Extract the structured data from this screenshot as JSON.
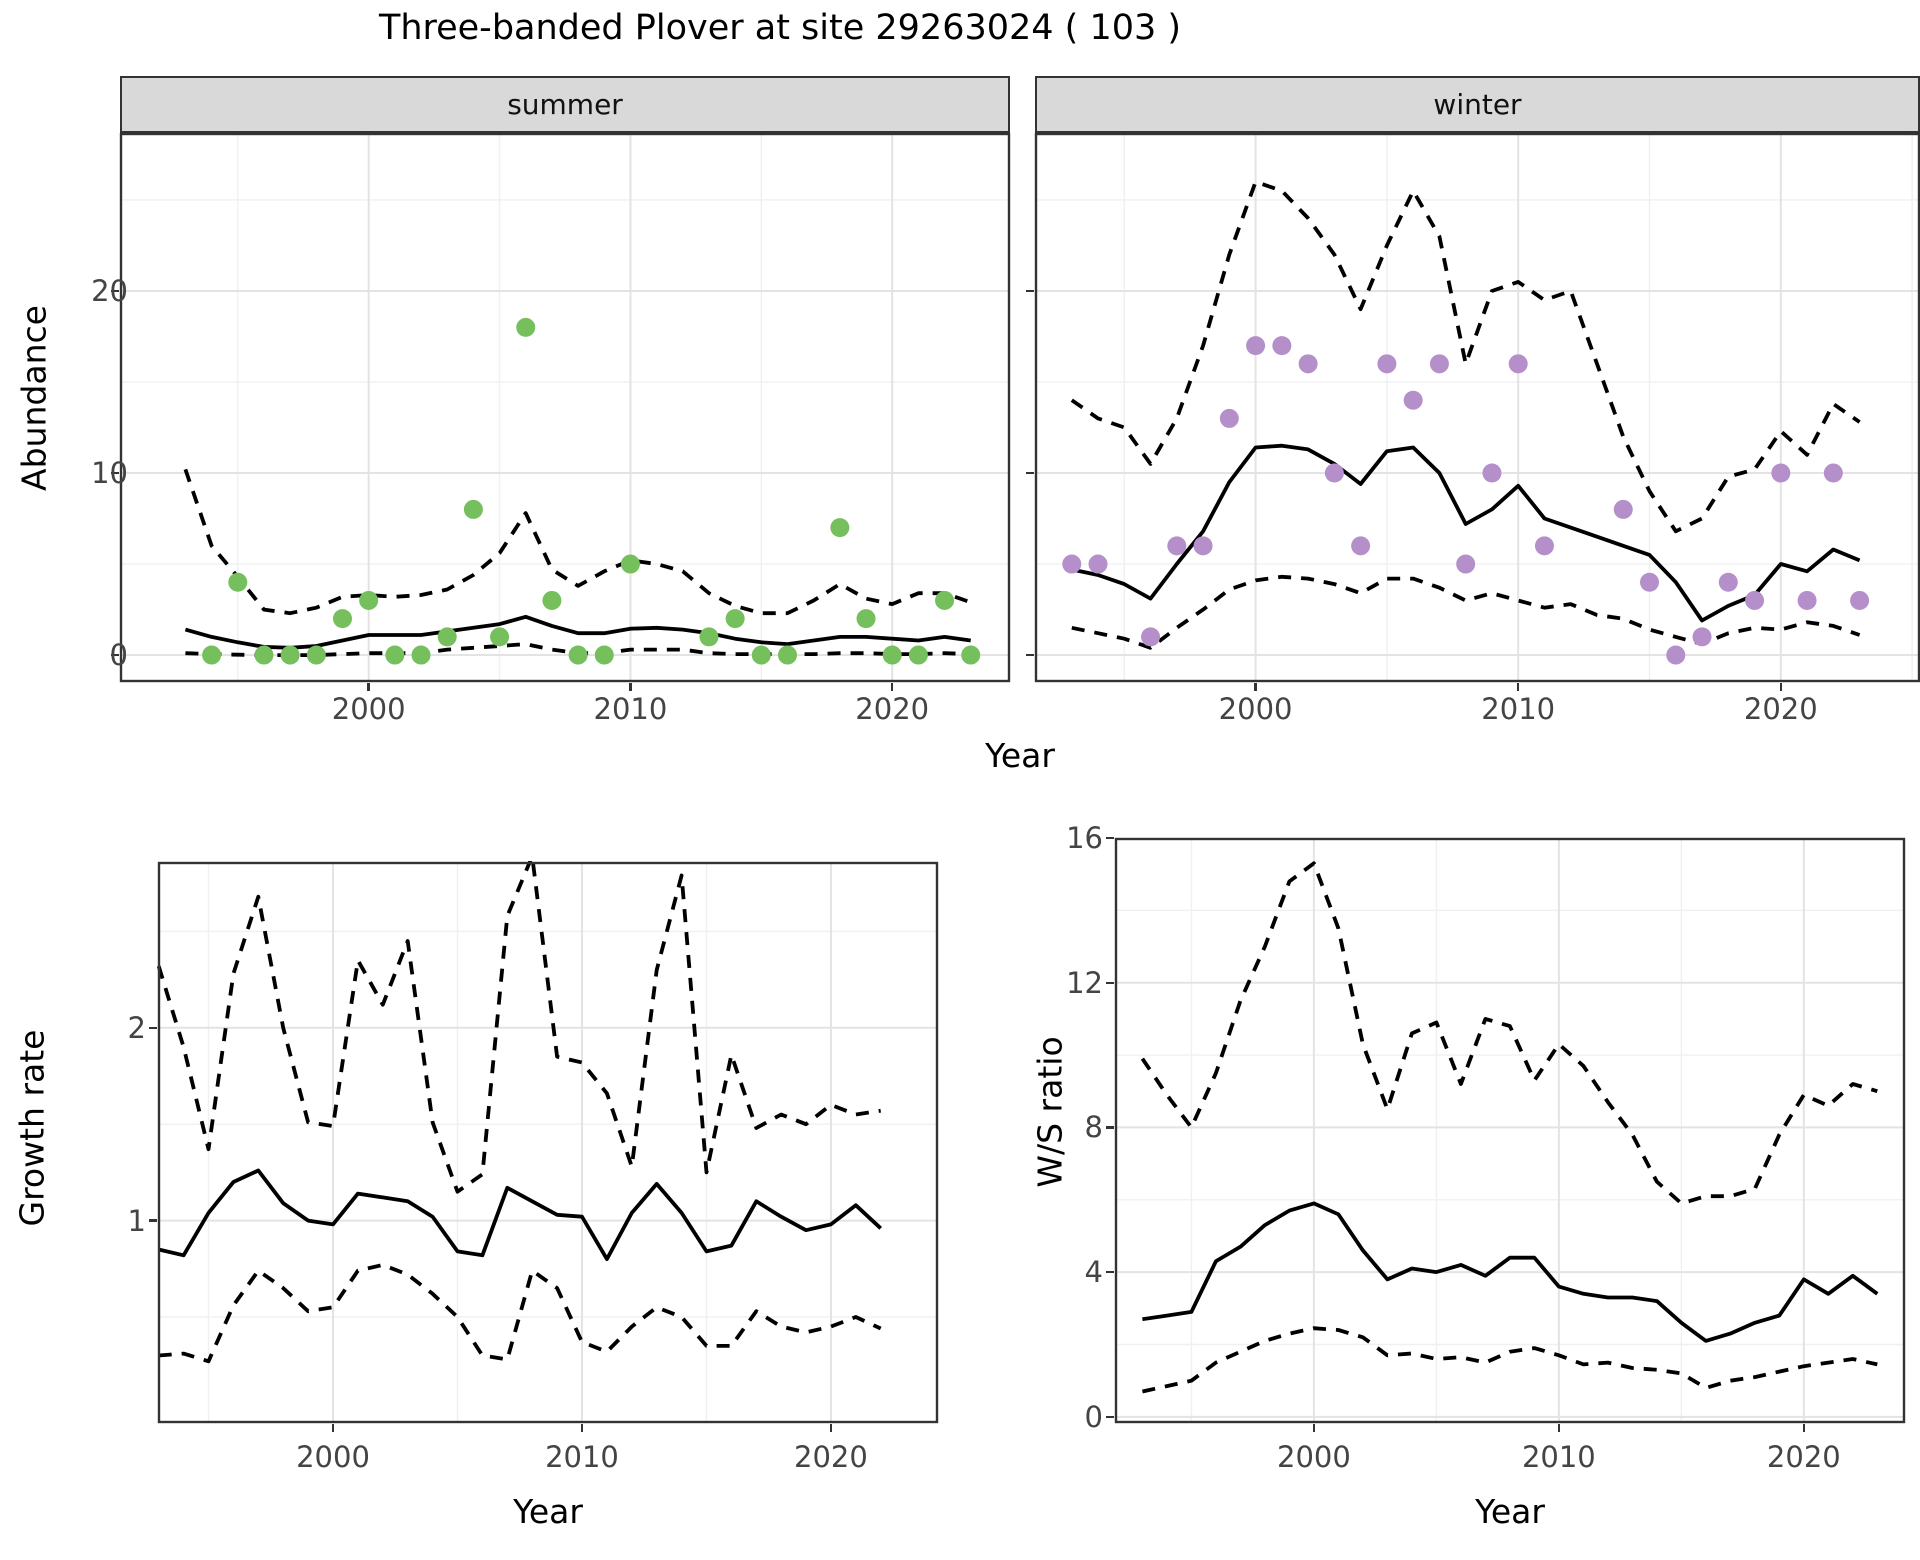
{
  "title": "Three-banded Plover at site 29263024 ( 103 )",
  "labels": {
    "y_abundance": "Abundance",
    "y_growth": "Growth rate",
    "y_ws": "W/S ratio",
    "x_year": "Year"
  },
  "facets": [
    {
      "label": "summer"
    },
    {
      "label": "winter"
    }
  ],
  "colors": {
    "summer_point": "#75bf5c",
    "winter_point": "#b58fc9",
    "line": "#000000",
    "panel_border": "#333333",
    "strip_bg": "#d9d9d9",
    "grid_major": "#e3e3e3",
    "grid_minor": "#f0f0f0",
    "tick_text": "#444444"
  },
  "chart_data": [
    {
      "type": "line",
      "title": "summer",
      "xlabel": "Year",
      "ylabel": "Abundance",
      "legend": "none",
      "grid": "on",
      "xlim": [
        1990.5,
        2024.5
      ],
      "ylim": [
        -1.48,
        28.68
      ],
      "xticks": [
        2000,
        2010,
        2020
      ],
      "yticks": [
        0,
        10,
        20
      ],
      "x": [
        1993,
        1994,
        1995,
        1996,
        1997,
        1998,
        1999,
        2000,
        2001,
        2002,
        2003,
        2004,
        2005,
        2006,
        2007,
        2008,
        2009,
        2010,
        2011,
        2012,
        2013,
        2014,
        2015,
        2016,
        2017,
        2018,
        2019,
        2020,
        2021,
        2022,
        2023
      ],
      "series": [
        {
          "name": "observed_count",
          "style": "points",
          "color": "#75bf5c",
          "values": [
            null,
            0,
            4,
            0,
            0,
            0,
            2,
            3,
            0,
            0,
            1,
            8,
            1,
            18,
            3,
            0,
            0,
            5,
            null,
            null,
            1,
            2,
            0,
            0,
            null,
            7,
            2,
            0,
            0,
            3,
            0
          ]
        },
        {
          "name": "model_median",
          "style": "solid",
          "color": "#000000",
          "values": [
            1.4,
            1.0,
            0.7,
            0.45,
            0.4,
            0.5,
            0.8,
            1.1,
            1.1,
            1.1,
            1.3,
            1.5,
            1.7,
            2.1,
            1.6,
            1.2,
            1.2,
            1.45,
            1.5,
            1.4,
            1.2,
            0.9,
            0.7,
            0.6,
            0.8,
            1.0,
            1.0,
            0.9,
            0.8,
            1.0,
            0.8
          ]
        },
        {
          "name": "ci_upper_95",
          "style": "dashed",
          "color": "#000000",
          "values": [
            10.2,
            6.0,
            4.3,
            2.5,
            2.3,
            2.6,
            3.2,
            3.3,
            3.2,
            3.3,
            3.6,
            4.4,
            5.6,
            7.8,
            4.7,
            3.8,
            4.6,
            5.2,
            5.0,
            4.6,
            3.4,
            2.7,
            2.3,
            2.3,
            3.0,
            3.9,
            3.1,
            2.8,
            3.4,
            3.4,
            2.9
          ]
        },
        {
          "name": "ci_lower_95",
          "style": "dashed",
          "color": "#000000",
          "values": [
            0.1,
            0.05,
            0.02,
            0,
            0,
            0,
            0.05,
            0.1,
            0.1,
            0.1,
            0.3,
            0.4,
            0.5,
            0.6,
            0.3,
            0.1,
            0.1,
            0.3,
            0.3,
            0.3,
            0.1,
            0.05,
            0.05,
            0.05,
            0.05,
            0.1,
            0.1,
            0.05,
            0.05,
            0.1,
            0.05
          ]
        }
      ]
    },
    {
      "type": "line",
      "title": "winter",
      "xlabel": "Year",
      "ylabel": "Abundance",
      "legend": "none",
      "grid": "on",
      "xlim": [
        1991.6,
        2025.3
      ],
      "ylim": [
        -1.48,
        28.68
      ],
      "xticks": [
        2000,
        2010,
        2020
      ],
      "yticks": [
        0,
        10,
        20
      ],
      "x": [
        1993,
        1994,
        1995,
        1996,
        1997,
        1998,
        1999,
        2000,
        2001,
        2002,
        2003,
        2004,
        2005,
        2006,
        2007,
        2008,
        2009,
        2010,
        2011,
        2012,
        2013,
        2014,
        2015,
        2016,
        2017,
        2018,
        2019,
        2020,
        2021,
        2022,
        2023
      ],
      "series": [
        {
          "name": "observed_count",
          "style": "points",
          "color": "#b58fc9",
          "values": [
            5,
            5,
            null,
            1,
            6,
            6,
            13,
            17,
            17,
            16,
            10,
            6,
            16,
            14,
            16,
            5,
            10,
            16,
            6,
            null,
            null,
            8,
            4,
            0,
            1,
            4,
            3,
            10,
            3,
            10,
            3
          ]
        },
        {
          "name": "model_median",
          "style": "solid",
          "color": "#000000",
          "values": [
            4.7,
            4.4,
            3.9,
            3.1,
            5.0,
            6.8,
            9.5,
            11.4,
            11.5,
            11.3,
            10.5,
            9.4,
            11.2,
            11.4,
            10.0,
            7.2,
            8.0,
            9.3,
            7.5,
            7.0,
            6.5,
            6.0,
            5.5,
            4.0,
            1.9,
            2.7,
            3.3,
            5.0,
            4.6,
            5.8,
            5.2
          ]
        },
        {
          "name": "ci_upper_95",
          "style": "dashed",
          "color": "#000000",
          "values": [
            14.0,
            13.0,
            12.5,
            10.5,
            13.0,
            17.0,
            22.0,
            26.0,
            25.5,
            24.0,
            22.0,
            19.0,
            22.5,
            25.5,
            23.0,
            16.0,
            20.0,
            20.5,
            19.5,
            20.0,
            16.0,
            12.0,
            9.0,
            6.8,
            7.5,
            9.8,
            10.2,
            12.3,
            11.0,
            13.8,
            12.8
          ]
        },
        {
          "name": "ci_lower_95",
          "style": "dashed",
          "color": "#000000",
          "values": [
            1.5,
            1.2,
            0.9,
            0.4,
            1.5,
            2.5,
            3.6,
            4.1,
            4.3,
            4.2,
            3.9,
            3.4,
            4.2,
            4.2,
            3.7,
            3.0,
            3.4,
            3.0,
            2.6,
            2.8,
            2.2,
            2.0,
            1.4,
            1.0,
            0.6,
            1.2,
            1.5,
            1.4,
            1.8,
            1.6,
            1.1
          ]
        }
      ]
    },
    {
      "type": "line",
      "title": "Growth rate",
      "xlabel": "Year",
      "ylabel": "Growth rate",
      "legend": "none",
      "grid": "on",
      "xlim": [
        1992.97,
        2024.3
      ],
      "ylim": [
        -0.05,
        2.86
      ],
      "xticks": [
        2000,
        2010,
        2020
      ],
      "yticks": [
        1,
        2
      ],
      "x": [
        1993,
        1994,
        1995,
        1996,
        1997,
        1998,
        1999,
        2000,
        2001,
        2002,
        2003,
        2004,
        2005,
        2006,
        2007,
        2008,
        2009,
        2010,
        2011,
        2012,
        2013,
        2014,
        2015,
        2016,
        2017,
        2018,
        2019,
        2020,
        2021,
        2022
      ],
      "series": [
        {
          "name": "growth_median",
          "style": "solid",
          "color": "#000000",
          "values": [
            0.85,
            0.82,
            1.04,
            1.2,
            1.26,
            1.09,
            1.0,
            0.98,
            1.14,
            1.12,
            1.1,
            1.02,
            0.84,
            0.82,
            1.17,
            1.1,
            1.03,
            1.02,
            0.8,
            1.04,
            1.19,
            1.04,
            0.84,
            0.87,
            1.1,
            1.02,
            0.95,
            0.98,
            1.08,
            0.96
          ]
        },
        {
          "name": "ci_upper_95",
          "style": "dashed",
          "color": "#000000",
          "values": [
            2.32,
            1.9,
            1.37,
            2.28,
            2.68,
            2.0,
            1.51,
            1.49,
            2.35,
            2.12,
            2.45,
            1.51,
            1.15,
            1.24,
            2.58,
            2.89,
            1.85,
            1.82,
            1.66,
            1.28,
            2.3,
            2.79,
            1.25,
            1.86,
            1.48,
            1.55,
            1.5,
            1.6,
            1.55,
            1.57
          ]
        },
        {
          "name": "ci_lower_95",
          "style": "dashed",
          "color": "#000000",
          "values": [
            0.3,
            0.31,
            0.27,
            0.56,
            0.74,
            0.65,
            0.53,
            0.55,
            0.74,
            0.77,
            0.72,
            0.62,
            0.5,
            0.3,
            0.28,
            0.74,
            0.65,
            0.37,
            0.32,
            0.45,
            0.55,
            0.5,
            0.35,
            0.35,
            0.53,
            0.45,
            0.42,
            0.45,
            0.5,
            0.44
          ]
        }
      ]
    },
    {
      "type": "line",
      "title": "W/S ratio",
      "xlabel": "Year",
      "ylabel": "W/S ratio",
      "legend": "none",
      "grid": "on",
      "xlim": [
        1991.88,
        2024.13
      ],
      "ylim": [
        -0.17,
        16.0
      ],
      "xticks": [
        2000,
        2010,
        2020
      ],
      "yticks": [
        0,
        4,
        8,
        12,
        16
      ],
      "x": [
        1993,
        1994,
        1995,
        1996,
        1997,
        1998,
        1999,
        2000,
        2001,
        2002,
        2003,
        2004,
        2005,
        2006,
        2007,
        2008,
        2009,
        2010,
        2011,
        2012,
        2013,
        2014,
        2015,
        2016,
        2017,
        2018,
        2019,
        2020,
        2021,
        2022,
        2023
      ],
      "series": [
        {
          "name": "ratio_median",
          "style": "solid",
          "color": "#000000",
          "values": [
            2.7,
            2.8,
            2.9,
            4.3,
            4.7,
            5.3,
            5.7,
            5.9,
            5.6,
            4.6,
            3.8,
            4.1,
            4.0,
            4.2,
            3.9,
            4.4,
            4.4,
            3.6,
            3.4,
            3.3,
            3.3,
            3.2,
            2.6,
            2.1,
            2.3,
            2.6,
            2.8,
            3.8,
            3.4,
            3.9,
            3.4
          ]
        },
        {
          "name": "ci_upper_95",
          "style": "dashed",
          "color": "#000000",
          "values": [
            9.9,
            8.9,
            8.0,
            9.5,
            11.5,
            13.0,
            14.8,
            15.3,
            13.5,
            10.3,
            8.5,
            10.6,
            10.9,
            9.2,
            11.0,
            10.8,
            9.3,
            10.3,
            9.7,
            8.7,
            7.8,
            6.5,
            5.9,
            6.1,
            6.1,
            6.3,
            7.8,
            8.9,
            8.6,
            9.2,
            9.0
          ]
        },
        {
          "name": "ci_lower_95",
          "style": "dashed",
          "color": "#000000",
          "values": [
            0.7,
            0.85,
            1.0,
            1.5,
            1.8,
            2.1,
            2.3,
            2.45,
            2.4,
            2.2,
            1.7,
            1.75,
            1.6,
            1.65,
            1.5,
            1.8,
            1.9,
            1.7,
            1.45,
            1.5,
            1.35,
            1.3,
            1.2,
            0.8,
            1.0,
            1.1,
            1.25,
            1.4,
            1.5,
            1.6,
            1.45
          ]
        }
      ]
    }
  ]
}
